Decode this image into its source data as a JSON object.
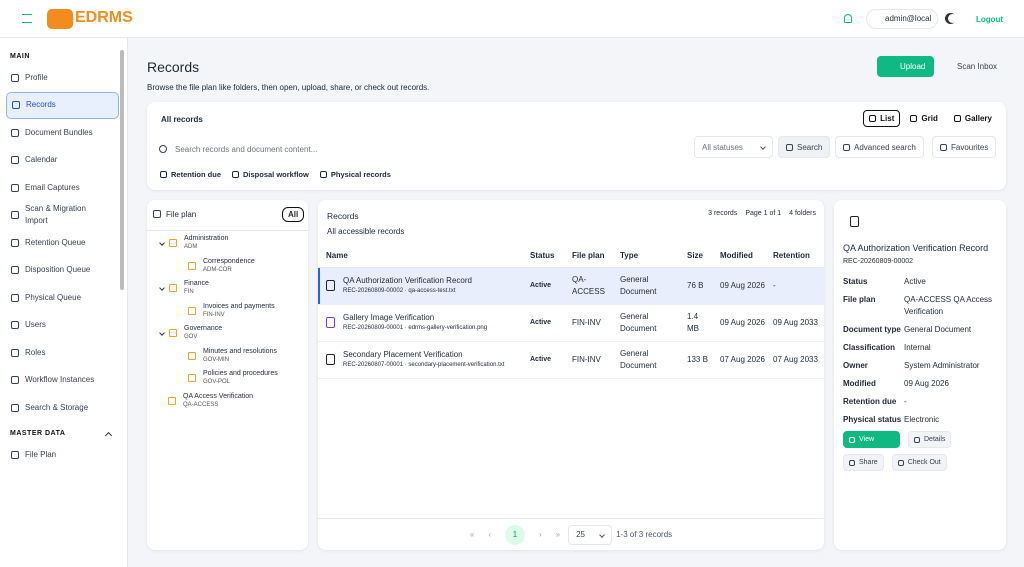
{
  "header": {
    "logo": "EDRMS",
    "user": "admin@local",
    "logout": "Logout"
  },
  "sidebar": {
    "sections": [
      {
        "title": "MAIN",
        "items": [
          "Profile",
          "Records",
          "Document Bundles",
          "Calendar",
          "Email Captures",
          "Scan & Migration Import",
          "Retention Queue",
          "Disposition Queue",
          "Physical Queue",
          "Users",
          "Roles",
          "Workflow Instances",
          "Search & Storage"
        ]
      },
      {
        "title": "MASTER DATA",
        "items": [
          "File Plan"
        ]
      }
    ]
  },
  "page": {
    "title": "Records",
    "subtitle": "Browse the file plan like folders, then open, upload, share, or check out records.",
    "upload": "Upload",
    "scan_inbox": "Scan Inbox"
  },
  "toolbar": {
    "title": "All records",
    "views": [
      "List",
      "Grid",
      "Gallery"
    ],
    "search_placeholder": "Search records and document content...",
    "status_filter": "All statuses",
    "search": "Search",
    "advanced_search": "Advanced search",
    "favourites": "Favourites",
    "filters": [
      "Retention due",
      "Disposal workflow",
      "Physical records"
    ]
  },
  "file_plan": {
    "title": "File plan",
    "all": "All",
    "nodes": [
      {
        "label": "Administration",
        "code": "ADM",
        "children": [
          {
            "label": "Correspondence",
            "code": "ADM-COR"
          }
        ]
      },
      {
        "label": "Finance",
        "code": "FIN",
        "children": [
          {
            "label": "Invoices and payments",
            "code": "FIN-INV"
          }
        ]
      },
      {
        "label": "Governance",
        "code": "GOV",
        "children": [
          {
            "label": "Minutes and resolutions",
            "code": "GOV-MIN"
          },
          {
            "label": "Policies and procedures",
            "code": "GOV-POL"
          }
        ]
      },
      {
        "label": "QA Access Verification",
        "code": "QA-ACCESS"
      }
    ]
  },
  "records_panel": {
    "title": "Records",
    "subtitle": "All accessible records",
    "count": "3 records",
    "page": "Page 1 of 1",
    "folders": "4 folders",
    "columns": [
      "Name",
      "Status",
      "File plan",
      "Type",
      "Size",
      "Modified",
      "Retention"
    ],
    "rows": [
      {
        "name": "QA Authorization Verification Record",
        "ref": "REC-20260809-00002 · qa-access-test.txt",
        "status": "Active",
        "file_plan": "QA-ACCESS",
        "type": "General Document",
        "size": "76 B",
        "modified": "09 Aug 2026",
        "retention": "-"
      },
      {
        "name": "Gallery Image Verification",
        "ref": "REC-20260809-00001 · edrms-gallery-verification.png",
        "status": "Active",
        "file_plan": "FIN-INV",
        "type": "General Document",
        "size": "1.4 MB",
        "modified": "09 Aug 2026",
        "retention": "09 Aug 2033"
      },
      {
        "name": "Secondary Placement Verification",
        "ref": "REC-20260807-00001 · secondary-placement-verification.txt",
        "status": "Active",
        "file_plan": "FIN-INV",
        "type": "General Document",
        "size": "133 B",
        "modified": "07 Aug 2026",
        "retention": "07 Aug 2033"
      }
    ],
    "pagination": {
      "current": "1",
      "page_size": "25",
      "summary": "1-3 of 3 records"
    }
  },
  "details": {
    "title": "QA Authorization Verification Record",
    "ref": "REC-20260809-00002",
    "fields": [
      {
        "label": "Status",
        "value": "Active"
      },
      {
        "label": "File plan",
        "value": "QA-ACCESS QA Access Verification"
      },
      {
        "label": "Document type",
        "value": "General Document"
      },
      {
        "label": "Classification",
        "value": "Internal"
      },
      {
        "label": "Owner",
        "value": "System Administrator"
      },
      {
        "label": "Modified",
        "value": "09 Aug 2026"
      },
      {
        "label": "Retention due",
        "value": "-"
      },
      {
        "label": "Physical status",
        "value": "Electronic"
      }
    ],
    "actions": [
      "View",
      "Details",
      "Share",
      "Check Out"
    ]
  }
}
